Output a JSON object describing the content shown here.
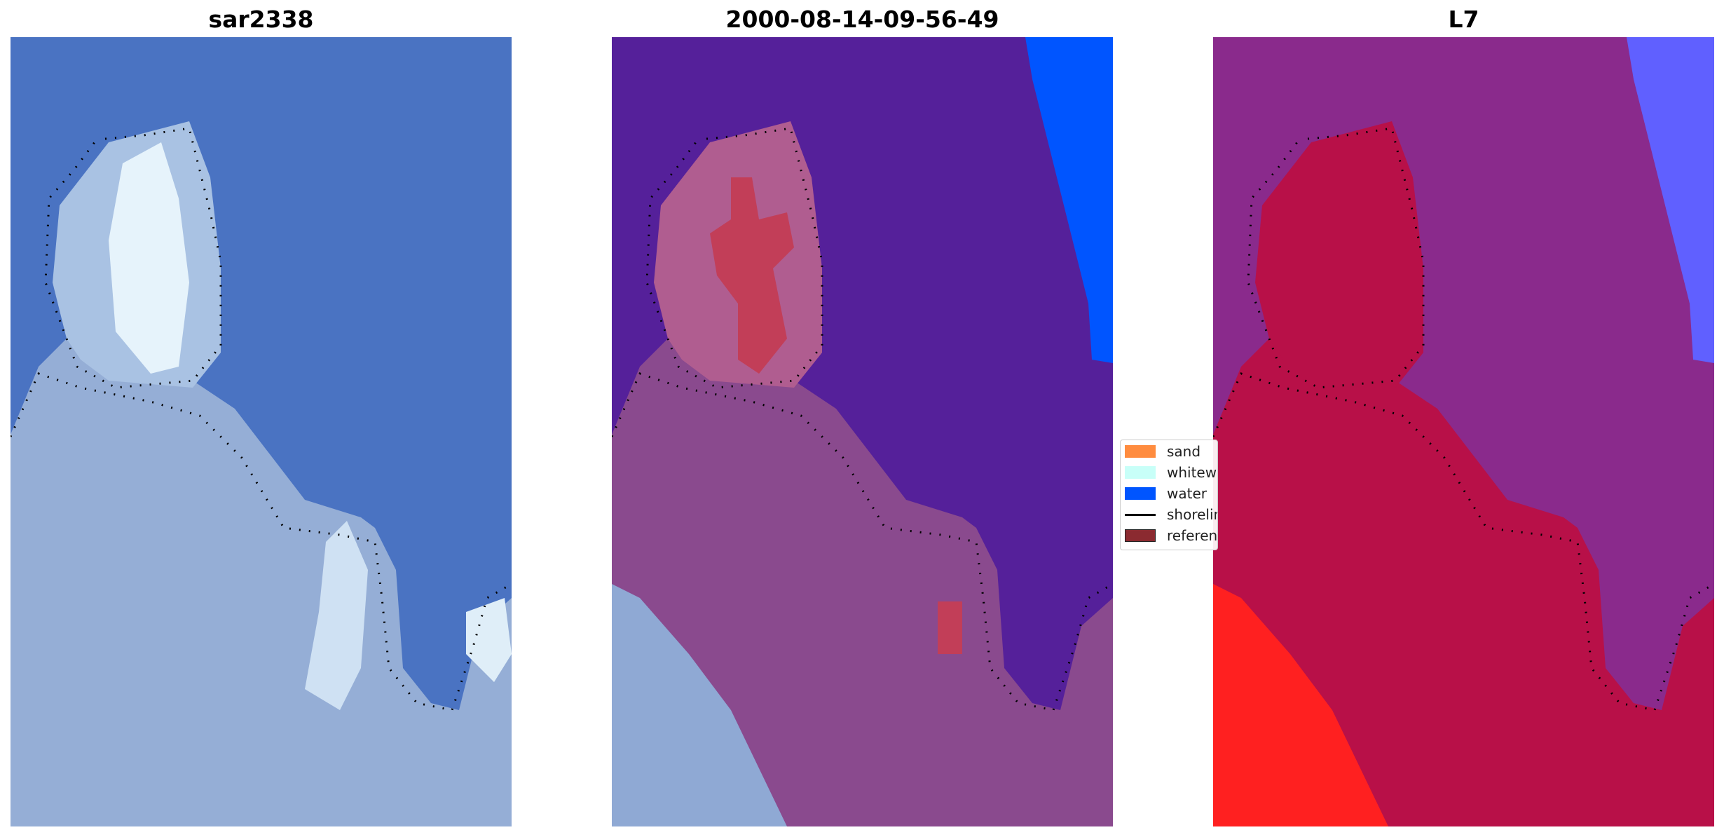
{
  "panels": [
    {
      "title": "sar2338"
    },
    {
      "title": "2000-08-14-09-56-49"
    },
    {
      "title": "L7"
    }
  ],
  "legend": {
    "items": [
      {
        "label": "sand",
        "kind": "patch",
        "color": "#ff8c3f"
      },
      {
        "label": "whitewater",
        "kind": "patch",
        "color": "#c8fff8"
      },
      {
        "label": "water",
        "kind": "patch",
        "color": "#0055ff"
      },
      {
        "label": "shoreline",
        "kind": "line",
        "color": "#000000"
      },
      {
        "label": "reference shoreline",
        "kind": "patch",
        "color": "#8b2a30"
      }
    ]
  },
  "colors": {
    "rgb_water": "#4a73c2",
    "rgb_land": "#95aed6",
    "rgb_bright": "#e6f3fb",
    "class_water": "#55209a",
    "class_land": "#8a4a8e",
    "class_island": "#b05d90",
    "class_sand_core": "#c23e58",
    "class_blue_water": "#0055ff",
    "mndwi_land": "#b81048",
    "mndwi_mid": "#8a2a8c",
    "mndwi_high": "#ff2020",
    "mndwi_water": "#6060ff"
  }
}
